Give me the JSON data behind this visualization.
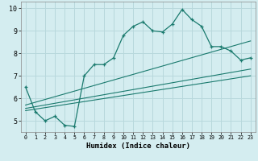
{
  "xlabel": "Humidex (Indice chaleur)",
  "bg_color": "#d4edf0",
  "grid_color": "#b8d8dc",
  "line_color": "#1a7a6e",
  "xlim": [
    -0.5,
    23.5
  ],
  "ylim": [
    4.5,
    10.3
  ],
  "xticks": [
    0,
    1,
    2,
    3,
    4,
    5,
    6,
    7,
    8,
    9,
    10,
    11,
    12,
    13,
    14,
    15,
    16,
    17,
    18,
    19,
    20,
    21,
    22,
    23
  ],
  "yticks": [
    5,
    6,
    7,
    8,
    9,
    10
  ],
  "main_x": [
    0,
    1,
    2,
    3,
    4,
    5,
    6,
    7,
    8,
    9,
    10,
    11,
    12,
    13,
    14,
    15,
    16,
    17,
    18,
    19,
    20,
    21,
    22,
    23
  ],
  "main_y": [
    6.5,
    5.4,
    5.0,
    5.2,
    4.8,
    4.75,
    7.0,
    7.5,
    7.5,
    7.8,
    8.8,
    9.2,
    9.4,
    9.0,
    8.95,
    9.3,
    9.95,
    9.5,
    9.2,
    8.3,
    8.3,
    8.1,
    7.7,
    7.8
  ],
  "line2_x": [
    0,
    23
  ],
  "line2_y": [
    5.7,
    8.55
  ],
  "line3_x": [
    0,
    23
  ],
  "line3_y": [
    5.55,
    7.3
  ],
  "line4_x": [
    0,
    23
  ],
  "line4_y": [
    5.45,
    7.0
  ]
}
